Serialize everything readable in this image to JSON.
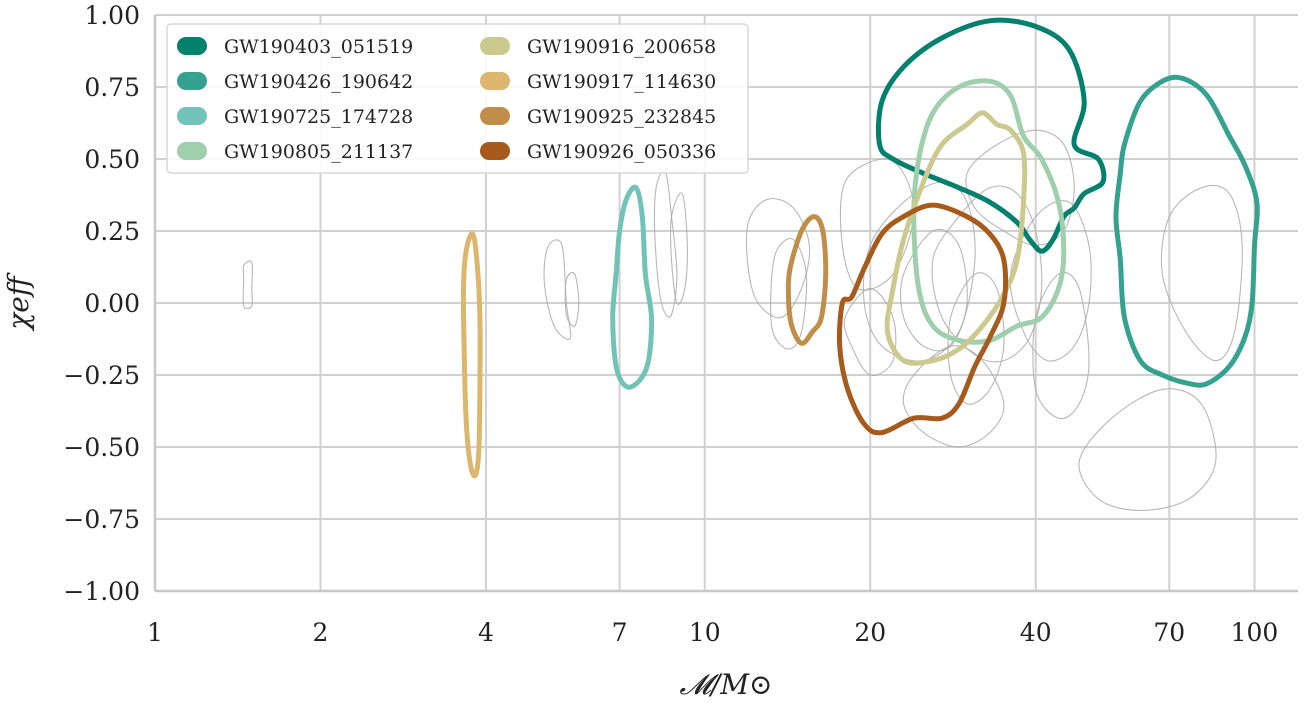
{
  "chart_data": {
    "type": "contour",
    "xlabel": "𝓜/M⊙",
    "ylabel": "χeff",
    "xscale": "log",
    "xlim": [
      1,
      120
    ],
    "ylim": [
      -1.0,
      1.0
    ],
    "grid": true,
    "legend_placement": "top-left",
    "x_ticks": [
      1,
      2,
      4,
      7,
      10,
      20,
      40,
      70,
      100
    ],
    "x_tick_labels": [
      "1",
      "2",
      "4",
      "7",
      "10",
      "20",
      "40",
      "70",
      "100"
    ],
    "y_ticks": [
      -1.0,
      -0.75,
      -0.5,
      -0.25,
      0.0,
      0.25,
      0.5,
      0.75,
      1.0
    ],
    "y_tick_labels": [
      "−1.00",
      "−0.75",
      "−0.50",
      "−0.25",
      "0.00",
      "0.25",
      "0.50",
      "0.75",
      "1.00"
    ],
    "series": [
      {
        "name": "GW190403_051519",
        "color": "#01806d",
        "contour": [
          [
            20.8,
            0.55
          ],
          [
            21,
            0.7
          ],
          [
            23,
            0.82
          ],
          [
            27,
            0.92
          ],
          [
            33,
            0.98
          ],
          [
            40,
            0.96
          ],
          [
            46,
            0.88
          ],
          [
            49,
            0.7
          ],
          [
            47,
            0.55
          ],
          [
            52,
            0.5
          ],
          [
            53,
            0.42
          ],
          [
            49,
            0.38
          ],
          [
            47,
            0.33
          ],
          [
            45,
            0.3
          ],
          [
            43,
            0.22
          ],
          [
            41,
            0.18
          ],
          [
            39,
            0.22
          ],
          [
            37,
            0.28
          ],
          [
            33,
            0.35
          ],
          [
            29,
            0.4
          ],
          [
            25,
            0.45
          ],
          [
            22,
            0.5
          ]
        ]
      },
      {
        "name": "GW190426_190642",
        "color": "#35a290",
        "contour": [
          [
            58,
            0.55
          ],
          [
            62,
            0.7
          ],
          [
            68,
            0.77
          ],
          [
            74,
            0.78
          ],
          [
            82,
            0.72
          ],
          [
            90,
            0.58
          ],
          [
            96,
            0.48
          ],
          [
            101,
            0.35
          ],
          [
            100,
            0.2
          ],
          [
            99,
            0.0
          ],
          [
            96,
            -0.12
          ],
          [
            90,
            -0.22
          ],
          [
            82,
            -0.28
          ],
          [
            76,
            -0.28
          ],
          [
            68,
            -0.25
          ],
          [
            62,
            -0.2
          ],
          [
            58,
            -0.05
          ],
          [
            57,
            0.15
          ],
          [
            56,
            0.3
          ],
          [
            57,
            0.45
          ]
        ]
      },
      {
        "name": "GW190725_174728",
        "color": "#71c2b7",
        "contour": [
          [
            7.2,
            0.36
          ],
          [
            7.5,
            0.4
          ],
          [
            7.7,
            0.3
          ],
          [
            7.8,
            0.1
          ],
          [
            8.0,
            -0.05
          ],
          [
            7.9,
            -0.2
          ],
          [
            7.6,
            -0.27
          ],
          [
            7.2,
            -0.29
          ],
          [
            6.9,
            -0.22
          ],
          [
            6.8,
            -0.05
          ],
          [
            6.9,
            0.1
          ],
          [
            7.0,
            0.25
          ]
        ]
      },
      {
        "name": "GW190805_211137",
        "color": "#9fcfad",
        "contour": [
          [
            26,
            0.66
          ],
          [
            29,
            0.75
          ],
          [
            33,
            0.77
          ],
          [
            36,
            0.72
          ],
          [
            38,
            0.58
          ],
          [
            41,
            0.5
          ],
          [
            44,
            0.35
          ],
          [
            45,
            0.18
          ],
          [
            44,
            0.05
          ],
          [
            41,
            -0.05
          ],
          [
            37,
            -0.08
          ],
          [
            33,
            -0.13
          ],
          [
            29,
            -0.13
          ],
          [
            26,
            -0.08
          ],
          [
            24.5,
            0.05
          ],
          [
            24,
            0.3
          ],
          [
            24.5,
            0.5
          ]
        ]
      },
      {
        "name": "GW190916_200658",
        "color": "#cbc98e",
        "contour": [
          [
            22,
            0.05
          ],
          [
            23,
            0.22
          ],
          [
            25,
            0.42
          ],
          [
            27,
            0.55
          ],
          [
            30,
            0.62
          ],
          [
            32,
            0.66
          ],
          [
            34,
            0.62
          ],
          [
            36,
            0.6
          ],
          [
            38,
            0.52
          ],
          [
            38,
            0.35
          ],
          [
            37,
            0.15
          ],
          [
            35,
            0.03
          ],
          [
            32,
            -0.08
          ],
          [
            29,
            -0.16
          ],
          [
            26,
            -0.2
          ],
          [
            23,
            -0.2
          ],
          [
            21.5,
            -0.1
          ]
        ]
      },
      {
        "name": "GW190917_114630",
        "color": "#dbb66c",
        "contour": [
          [
            3.68,
            0.18
          ],
          [
            3.78,
            0.24
          ],
          [
            3.85,
            0.15
          ],
          [
            3.9,
            -0.05
          ],
          [
            3.9,
            -0.3
          ],
          [
            3.88,
            -0.52
          ],
          [
            3.82,
            -0.6
          ],
          [
            3.74,
            -0.55
          ],
          [
            3.68,
            -0.4
          ],
          [
            3.65,
            -0.15
          ],
          [
            3.64,
            0.05
          ]
        ]
      },
      {
        "name": "GW190925_232845",
        "color": "#c18e4a",
        "contour": [
          [
            14.3,
            0.12
          ],
          [
            15,
            0.25
          ],
          [
            15.8,
            0.3
          ],
          [
            16.4,
            0.25
          ],
          [
            16.6,
            0.1
          ],
          [
            16.3,
            -0.05
          ],
          [
            15.7,
            -0.1
          ],
          [
            15,
            -0.14
          ],
          [
            14.4,
            -0.08
          ],
          [
            14.2,
            0.02
          ]
        ]
      },
      {
        "name": "GW190926_050336",
        "color": "#a65b1c",
        "contour": [
          [
            18.5,
            0.02
          ],
          [
            19.5,
            0.12
          ],
          [
            21,
            0.24
          ],
          [
            23,
            0.3
          ],
          [
            26,
            0.34
          ],
          [
            30,
            0.3
          ],
          [
            33,
            0.24
          ],
          [
            35,
            0.15
          ],
          [
            35,
            0.0
          ],
          [
            33,
            -0.12
          ],
          [
            31,
            -0.22
          ],
          [
            29,
            -0.35
          ],
          [
            27,
            -0.4
          ],
          [
            24,
            -0.4
          ],
          [
            21,
            -0.45
          ],
          [
            19.5,
            -0.42
          ],
          [
            18.2,
            -0.3
          ],
          [
            17.6,
            -0.15
          ],
          [
            17.8,
            0.0
          ]
        ]
      }
    ],
    "background_contours": [
      {
        "color": "#aaaaaa",
        "contours": [
          [
            [
              1.45,
              0.13
            ],
            [
              1.5,
              0.14
            ],
            [
              1.5,
              0.05
            ],
            [
              1.5,
              -0.01
            ],
            [
              1.45,
              -0.01
            ],
            [
              1.45,
              0.08
            ]
          ],
          [
            [
              5.2,
              0.2
            ],
            [
              5.5,
              0.2
            ],
            [
              5.6,
              0.0
            ],
            [
              5.7,
              -0.12
            ],
            [
              5.4,
              -0.1
            ],
            [
              5.2,
              -0.02
            ],
            [
              5.1,
              0.1
            ]
          ],
          [
            [
              5.6,
              0.08
            ],
            [
              5.8,
              0.1
            ],
            [
              5.9,
              0.0
            ],
            [
              5.8,
              -0.08
            ],
            [
              5.6,
              -0.04
            ]
          ],
          [
            [
              8.2,
              0.42
            ],
            [
              8.5,
              0.45
            ],
            [
              8.7,
              0.3
            ],
            [
              8.9,
              0.1
            ],
            [
              8.7,
              -0.04
            ],
            [
              8.4,
              -0.02
            ],
            [
              8.2,
              0.1
            ],
            [
              8.1,
              0.3
            ]
          ],
          [
            [
              8.7,
              0.3
            ],
            [
              9.1,
              0.38
            ],
            [
              9.3,
              0.2
            ],
            [
              9.2,
              0.05
            ],
            [
              8.9,
              0.0
            ],
            [
              8.7,
              0.15
            ]
          ],
          [
            [
              12,
              0.28
            ],
            [
              13,
              0.36
            ],
            [
              14.5,
              0.33
            ],
            [
              15.5,
              0.2
            ],
            [
              15,
              0.05
            ],
            [
              13.8,
              -0.05
            ],
            [
              12.5,
              0.0
            ],
            [
              12,
              0.12
            ]
          ],
          [
            [
              13.5,
              0.18
            ],
            [
              14.5,
              0.22
            ],
            [
              15.3,
              0.1
            ],
            [
              15,
              -0.1
            ],
            [
              14.2,
              -0.16
            ],
            [
              13.3,
              -0.1
            ],
            [
              13.2,
              0.05
            ]
          ],
          [
            [
              18,
              0.42
            ],
            [
              21,
              0.5
            ],
            [
              23,
              0.45
            ],
            [
              24,
              0.3
            ],
            [
              22,
              0.1
            ],
            [
              19,
              0.05
            ],
            [
              17.8,
              0.2
            ]
          ],
          [
            [
              20,
              0.2
            ],
            [
              23,
              0.35
            ],
            [
              27,
              0.42
            ],
            [
              30,
              0.35
            ],
            [
              31,
              0.15
            ],
            [
              29,
              -0.1
            ],
            [
              25,
              -0.2
            ],
            [
              21,
              -0.15
            ],
            [
              19.5,
              0.0
            ]
          ],
          [
            [
              23,
              0.1
            ],
            [
              26,
              0.25
            ],
            [
              29,
              0.2
            ],
            [
              30,
              0.0
            ],
            [
              28,
              -0.15
            ],
            [
              25,
              -0.15
            ],
            [
              23,
              -0.05
            ]
          ],
          [
            [
              26,
              0.15
            ],
            [
              29,
              0.3
            ],
            [
              33,
              0.4
            ],
            [
              37,
              0.38
            ],
            [
              40,
              0.25
            ],
            [
              41,
              0.05
            ],
            [
              39,
              -0.12
            ],
            [
              35,
              -0.2
            ],
            [
              31,
              -0.18
            ],
            [
              27,
              -0.05
            ]
          ],
          [
            [
              28,
              -0.05
            ],
            [
              31,
              0.1
            ],
            [
              34,
              0.05
            ],
            [
              35,
              -0.15
            ],
            [
              33,
              -0.3
            ],
            [
              30,
              -0.35
            ],
            [
              28,
              -0.25
            ]
          ],
          [
            [
              24,
              -0.25
            ],
            [
              28,
              -0.15
            ],
            [
              32,
              -0.2
            ],
            [
              35,
              -0.35
            ],
            [
              33,
              -0.45
            ],
            [
              29,
              -0.5
            ],
            [
              25,
              -0.45
            ],
            [
              23,
              -0.35
            ]
          ],
          [
            [
              30,
              0.45
            ],
            [
              34,
              0.55
            ],
            [
              40,
              0.6
            ],
            [
              45,
              0.55
            ],
            [
              47,
              0.4
            ],
            [
              45,
              0.25
            ],
            [
              40,
              0.2
            ],
            [
              35,
              0.25
            ],
            [
              31,
              0.33
            ]
          ],
          [
            [
              36,
              0.1
            ],
            [
              40,
              0.3
            ],
            [
              46,
              0.35
            ],
            [
              50,
              0.2
            ],
            [
              50,
              0.0
            ],
            [
              47,
              -0.15
            ],
            [
              42,
              -0.2
            ],
            [
              38,
              -0.1
            ]
          ],
          [
            [
              40,
              -0.05
            ],
            [
              44,
              0.1
            ],
            [
              48,
              0.05
            ],
            [
              50,
              -0.2
            ],
            [
              48,
              -0.35
            ],
            [
              44,
              -0.4
            ],
            [
              40,
              -0.3
            ]
          ],
          [
            [
              48,
              -0.55
            ],
            [
              55,
              -0.4
            ],
            [
              68,
              -0.3
            ],
            [
              80,
              -0.35
            ],
            [
              85,
              -0.55
            ],
            [
              76,
              -0.68
            ],
            [
              62,
              -0.72
            ],
            [
              52,
              -0.68
            ]
          ],
          [
            [
              70,
              0.3
            ],
            [
              80,
              0.4
            ],
            [
              90,
              0.38
            ],
            [
              95,
              0.2
            ],
            [
              92,
              -0.1
            ],
            [
              85,
              -0.2
            ],
            [
              75,
              -0.1
            ],
            [
              68,
              0.1
            ]
          ],
          [
            [
              18,
              -0.05
            ],
            [
              20,
              0.05
            ],
            [
              22,
              -0.05
            ],
            [
              22,
              -0.2
            ],
            [
              20,
              -0.25
            ],
            [
              18.5,
              -0.15
            ]
          ]
        ]
      }
    ]
  }
}
